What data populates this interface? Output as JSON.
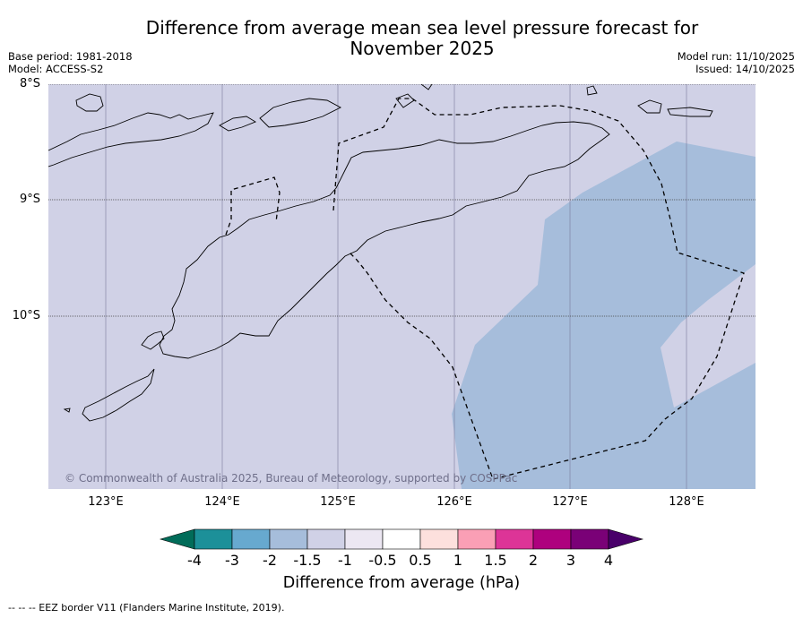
{
  "title": {
    "line1": "Difference from average mean sea level pressure forecast for",
    "line2": "November 2025"
  },
  "meta": {
    "base_period": "Base period: 1981-2018",
    "model": "Model: ACCESS-S2",
    "model_run": "Model run: 11/10/2025",
    "issued": "Issued: 14/10/2025"
  },
  "map": {
    "ocean_color": "#d0d1e6",
    "anomaly_color": "#a6bddb",
    "copyright": "© Commonwealth of Australia 2025, Bureau of Meteorology, supported by COSPPac",
    "lat_labels": [
      "8°S",
      "9°S",
      "10°S"
    ],
    "lon_labels": [
      "123°E",
      "124°E",
      "125°E",
      "126°E",
      "127°E",
      "128°E"
    ]
  },
  "colorbar": {
    "title": "Difference from average (hPa)",
    "ticks": [
      "-4",
      "-3",
      "-2",
      "-1.5",
      "-1",
      "-0.5",
      "0.5",
      "1",
      "1.5",
      "2",
      "3",
      "4"
    ],
    "colors": [
      "#016c59",
      "#1c9099",
      "#67a9cf",
      "#a6bddb",
      "#d0d1e6",
      "#ece7f2",
      "#ffffff",
      "#fde0dd",
      "#fa9fb5",
      "#dd3497",
      "#ae017e",
      "#7a0177",
      "#49006a"
    ]
  },
  "footer": "--  --  -- EEZ border V11 (Flanders Marine Institute, 2019)."
}
